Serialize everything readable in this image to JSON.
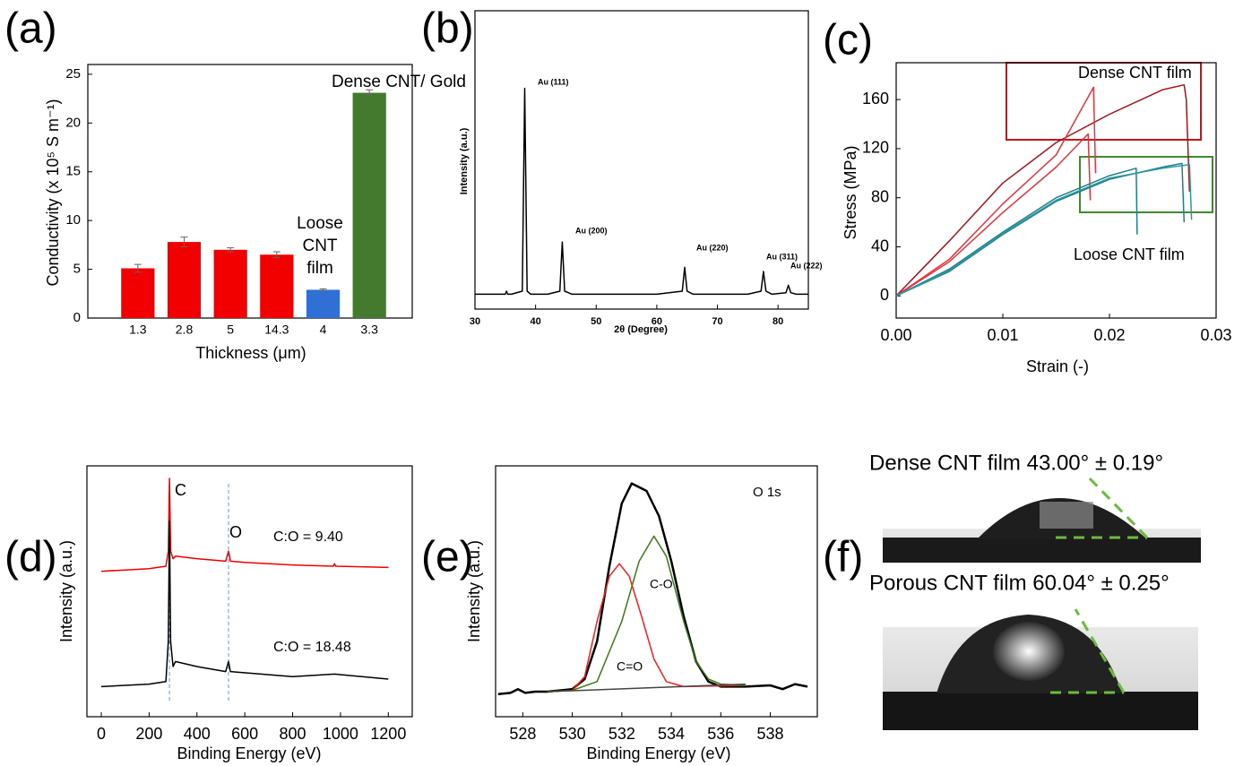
{
  "chart_data": [
    {
      "type": "bar",
      "panel_label": "(a)",
      "y_label": "Conductivity (x 10⁵ S m⁻¹)",
      "x_label": "Thickness (μm)",
      "categories": [
        "1.3",
        "2.8",
        "5",
        "14.3",
        "4",
        "3.3"
      ],
      "values": [
        5.1,
        7.8,
        7.0,
        6.5,
        2.9,
        23.1
      ],
      "errors": [
        0.4,
        0.5,
        0.2,
        0.3,
        0.1,
        0.3
      ],
      "colors": [
        "#f20000",
        "#f20000",
        "#f20000",
        "#f20000",
        "#2f6fd6",
        "#437a2e"
      ],
      "ylim": [
        0,
        26
      ],
      "yticks": [
        0,
        5,
        10,
        15,
        20,
        25
      ],
      "annotations": [
        {
          "text": "Dense CNT/ Gold",
          "color": "#22a33a"
        },
        {
          "lines": [
            "Loose",
            "CNT",
            "film"
          ],
          "color": "#2f6fd6"
        }
      ]
    },
    {
      "type": "line",
      "panel_label": "(b)",
      "y_label": "Intensity (a.u.)",
      "x_label": "2θ (Degree)",
      "xlim": [
        30,
        85
      ],
      "xticks": [
        30,
        40,
        50,
        60,
        70,
        80
      ],
      "ylim": [
        0,
        100
      ],
      "series": [
        {
          "color": "#000000",
          "x": [
            30,
            34,
            35,
            35.2,
            35.4,
            36,
            37.8,
            38.2,
            38.6,
            39.2,
            42,
            44,
            44.4,
            44.8,
            46,
            60,
            64.2,
            64.6,
            65,
            66,
            75,
            77.2,
            77.6,
            78,
            79,
            81.3,
            81.7,
            82.1,
            83,
            85
          ],
          "values": [
            5,
            5,
            5,
            6,
            5,
            5,
            6,
            74,
            6,
            5,
            5,
            6,
            22.5,
            6,
            5,
            5,
            6,
            14,
            6,
            5,
            5,
            6,
            12.6,
            6,
            5,
            5.5,
            8,
            5.5,
            5,
            5
          ]
        }
      ],
      "annotations": [
        {
          "text": "Au (111)"
        },
        {
          "text": "Au (200)"
        },
        {
          "text": "Au (220)"
        },
        {
          "text": "Au (311)"
        },
        {
          "text": "Au (222)"
        }
      ]
    },
    {
      "type": "line",
      "panel_label": "(c)",
      "y_label": "Stress (MPa)",
      "x_label": "Strain (-)",
      "xlim": [
        0,
        0.03
      ],
      "xticks": [
        {
          "value": 0,
          "label": "0.00"
        },
        {
          "value": 0.01,
          "label": "0.01"
        },
        {
          "value": 0.02,
          "label": "0.02"
        },
        {
          "value": 0.03,
          "label": "0.03"
        }
      ],
      "ylim": [
        -18,
        190
      ],
      "yticks": [
        0,
        40,
        80,
        120,
        160
      ],
      "series": [
        {
          "color": "#a3141c",
          "x": [
            0,
            0.005,
            0.01,
            0.015,
            0.02,
            0.025,
            0.027,
            0.0272,
            0.0275
          ],
          "values": [
            0,
            45,
            92,
            125,
            148,
            168,
            172,
            160,
            85
          ]
        },
        {
          "color": "#e8323c",
          "x": [
            0,
            0.005,
            0.01,
            0.015,
            0.0185,
            0.0187
          ],
          "values": [
            0,
            30,
            75,
            115,
            170,
            100
          ]
        },
        {
          "color": "#e8323c",
          "x": [
            0,
            0.005,
            0.01,
            0.015,
            0.018,
            0.0182
          ],
          "values": [
            0,
            28,
            68,
            105,
            132,
            78
          ]
        },
        {
          "color": "#1f7f88",
          "x": [
            0,
            0.005,
            0.01,
            0.015,
            0.02,
            0.0225,
            0.0226
          ],
          "values": [
            0,
            22,
            52,
            80,
            98,
            104,
            50
          ]
        },
        {
          "color": "#1f7f88",
          "x": [
            0,
            0.005,
            0.01,
            0.015,
            0.02,
            0.025,
            0.0268,
            0.027
          ],
          "values": [
            0,
            20,
            50,
            77,
            95,
            105,
            108,
            60
          ]
        },
        {
          "color": "#2a9aa4",
          "x": [
            0,
            0.005,
            0.01,
            0.015,
            0.02,
            0.025,
            0.0275,
            0.0277
          ],
          "values": [
            0,
            21,
            51,
            78,
            96,
            104,
            107,
            62
          ]
        }
      ],
      "annotations": [
        {
          "text": "Dense CNT film",
          "color": "#e0202a"
        },
        {
          "text": "Loose CNT film",
          "color": "#3f8a2e"
        }
      ]
    },
    {
      "type": "line",
      "panel_label": "(d)",
      "y_label": "Intensity (a.u.)",
      "x_label": "Binding Energy (eV)",
      "xlim": [
        -60,
        1300
      ],
      "xticks": [
        0,
        200,
        400,
        600,
        800,
        1000,
        1200
      ],
      "ylim": [
        0,
        100
      ],
      "reference_lines": [
        285,
        532
      ],
      "series": [
        {
          "color": "#f00000",
          "x": [
            0,
            100,
            200,
            270,
            280,
            285,
            290,
            300,
            310,
            400,
            520,
            532,
            540,
            600,
            800,
            970,
            975,
            980,
            1200
          ],
          "values": [
            58,
            58.5,
            59,
            60,
            66,
            95,
            66,
            63,
            64,
            63,
            62,
            66,
            62,
            61.5,
            60.5,
            60,
            61,
            60,
            59.5
          ]
        },
        {
          "color": "#000000",
          "x": [
            0,
            200,
            270,
            280,
            285,
            290,
            300,
            310,
            400,
            520,
            532,
            540,
            800,
            975,
            1200
          ],
          "values": [
            12,
            13,
            14,
            30,
            78,
            30,
            20,
            22,
            20,
            18,
            22,
            18,
            16,
            17,
            15
          ]
        }
      ],
      "annotations": [
        {
          "text": "C",
          "color": "#000000"
        },
        {
          "text": "O",
          "color": "#000000"
        },
        {
          "text": "C:O = 9.40",
          "color": "#f00000"
        },
        {
          "text": "C:O = 18.48",
          "color": "#000000"
        }
      ]
    },
    {
      "type": "line",
      "panel_label": "(e)",
      "y_label": "Intensity (a.u.)",
      "x_label": "Binding Energy (eV)",
      "xlim": [
        526.9,
        539.9
      ],
      "xticks": [
        528,
        530,
        532,
        534,
        536,
        538
      ],
      "ylim": [
        0,
        100
      ],
      "series": [
        {
          "color": "#000000",
          "x": [
            527,
            527.5,
            527.8,
            528.1,
            528.5,
            529,
            530,
            530.5,
            531,
            531.5,
            532,
            532.4,
            533,
            533.5,
            534,
            534.5,
            535,
            535.5,
            536,
            537,
            538,
            538.5,
            539,
            539.5
          ],
          "values": [
            9,
            9.5,
            11,
            9.5,
            10,
            10,
            11,
            15,
            30,
            60,
            85,
            93,
            90,
            80,
            62,
            40,
            22,
            14,
            12,
            12,
            12.5,
            11,
            13,
            12
          ]
        },
        {
          "color": "#ff1a1a",
          "x": [
            529,
            530,
            530.5,
            531,
            531.5,
            531.9,
            532.3,
            532.8,
            533.3,
            533.8,
            534.5,
            537
          ],
          "values": [
            10,
            10.5,
            16,
            38,
            56,
            61,
            56,
            40,
            23,
            14,
            12,
            12.5
          ]
        },
        {
          "color": "#3c7a12",
          "x": [
            529,
            530,
            531,
            532,
            532.7,
            533.3,
            533.8,
            534.5,
            535,
            535.5,
            536,
            537
          ],
          "values": [
            10,
            10.5,
            14,
            38,
            62,
            72,
            64,
            38,
            22,
            15,
            13,
            12.5
          ]
        },
        {
          "color": "#444444",
          "x": [
            529,
            537
          ],
          "values": [
            10,
            13
          ]
        }
      ],
      "annotations": [
        {
          "text": "O 1s",
          "color": "#000000"
        },
        {
          "text": "C=O",
          "color": "#ff1a1a"
        },
        {
          "text": "C-O",
          "color": "#3c7a12"
        }
      ]
    },
    {
      "type": "image",
      "panel_label": "(f)",
      "captions": [
        "Dense CNT film 43.00° ± 0.19°",
        "Porous CNT film 60.04° ± 0.25°"
      ]
    }
  ]
}
